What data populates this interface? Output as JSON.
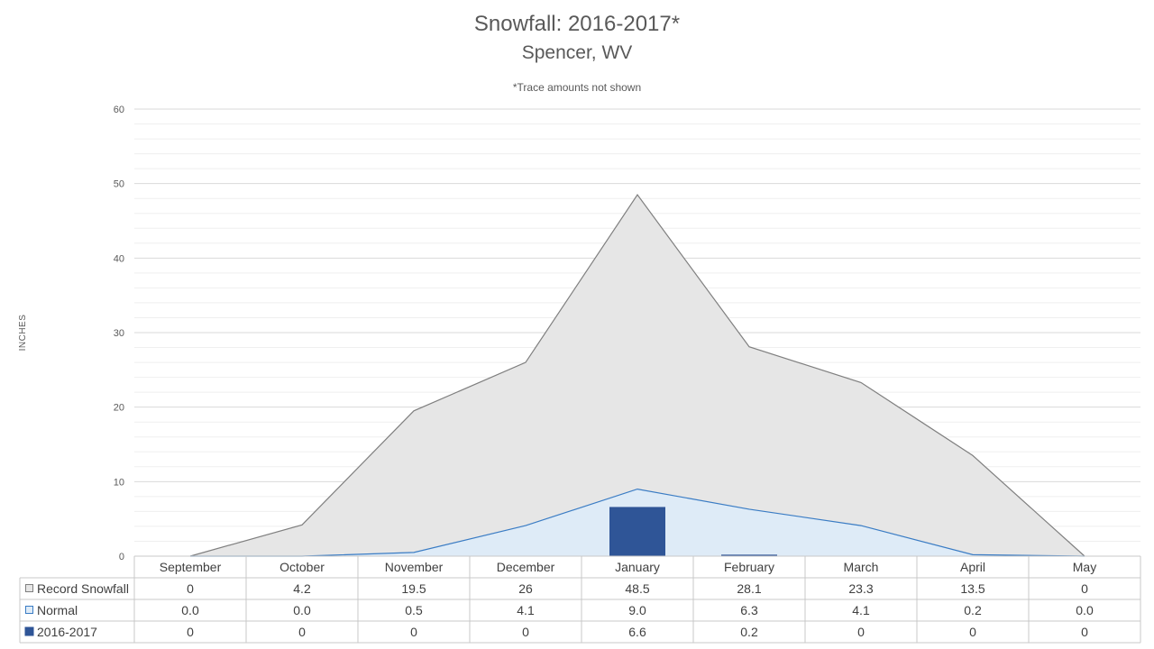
{
  "chart_data": {
    "type": "area",
    "title": "Snowfall: 2016-2017*",
    "subtitle": "Spencer, WV",
    "note": "*Trace amounts not shown",
    "ylabel": "INCHES",
    "ylim": [
      0,
      60
    ],
    "yticks": [
      0,
      10,
      20,
      30,
      40,
      50,
      60
    ],
    "minor_gridlines": true,
    "legend": "data-table-left",
    "categories": [
      "September",
      "October",
      "November",
      "December",
      "January",
      "February",
      "March",
      "April",
      "May"
    ],
    "series": [
      {
        "name": "Record Snowfall",
        "type": "area",
        "values": [
          0,
          4.2,
          19.5,
          26,
          48.5,
          28.1,
          23.3,
          13.5,
          0
        ],
        "labels": [
          "0",
          "4.2",
          "19.5",
          "26",
          "48.5",
          "28.1",
          "23.3",
          "13.5",
          "0"
        ],
        "color": "#e6e6e6",
        "line_color": "#7f7f7f"
      },
      {
        "name": "Normal",
        "type": "area",
        "values": [
          0.0,
          0.0,
          0.5,
          4.1,
          9.0,
          6.3,
          4.1,
          0.2,
          0.0
        ],
        "labels": [
          "0.0",
          "0.0",
          "0.5",
          "4.1",
          "9.0",
          "6.3",
          "4.1",
          "0.2",
          "0.0"
        ],
        "color": "#deebf7",
        "line_color": "#3a7cc4"
      },
      {
        "name": "2016-2017",
        "type": "bar",
        "values": [
          0,
          0,
          0,
          0,
          6.6,
          0.2,
          0,
          0,
          0
        ],
        "labels": [
          "0",
          "0",
          "0",
          "0",
          "6.6",
          "0.2",
          "0",
          "0",
          "0"
        ],
        "color": "#2f5597"
      }
    ]
  }
}
